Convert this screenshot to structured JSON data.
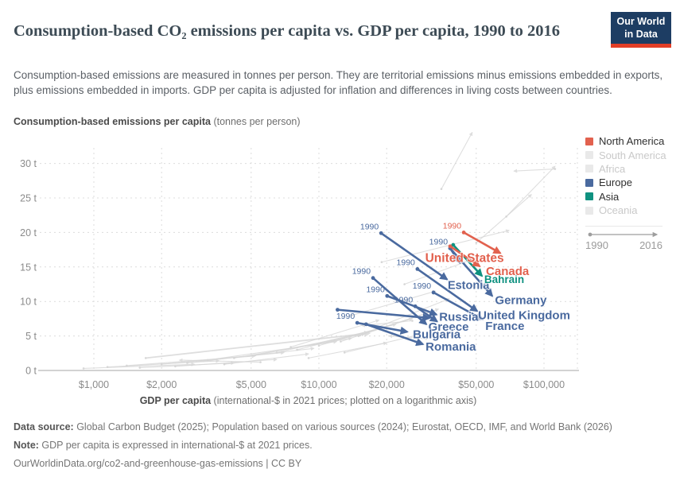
{
  "header": {
    "logo": {
      "line1": "Our World",
      "line2": "in Data"
    }
  },
  "palette": {
    "north_america": "#e2614e",
    "europe": "#4a6a9f",
    "asia": "#0f9180",
    "inactive_swatch": "#e9e9e9",
    "inactive_text": "#c9c9c9",
    "active_text": "#2f2f2f",
    "background_arrow": "#d6d6d6",
    "timeline": "#9e9e9e",
    "gridline": "#dcdcdc",
    "axis_line": "#c4c4c4",
    "tick_text": "#8b8b8b"
  },
  "chart_data": {
    "type": "scatter",
    "variant": "connected-scatter-arrows",
    "title": "Consumption-based CO₂ emissions per capita vs. GDP per capita, 1990 to 2016",
    "subtitle": "Consumption-based emissions are measured in tonnes per person. They are territorial emissions minus emissions embedded in exports, plus emissions embedded in imports. GDP per capita is adjusted for inflation and differences in living costs between countries.",
    "years": [
      1990,
      2016
    ],
    "x_axis": {
      "title_bold": "GDP per capita",
      "title_rest": " (international-$ in 2021 prices; plotted on a logarithmic axis)",
      "scale": "log",
      "ticks": [
        1000,
        2000,
        5000,
        10000,
        20000,
        50000,
        100000
      ],
      "tick_labels": [
        "$1,000",
        "$2,000",
        "$5,000",
        "$10,000",
        "$20,000",
        "$50,000",
        "$100,000"
      ],
      "range": [
        750,
        140000
      ]
    },
    "y_axis": {
      "title_bold": "Consumption-based emissions per capita",
      "title_rest": " (tonnes per person)",
      "scale": "linear",
      "ticks": [
        0,
        5,
        10,
        15,
        20,
        25,
        30
      ],
      "tick_labels": [
        "0 t",
        "5 t",
        "10 t",
        "15 t",
        "20 t",
        "25 t",
        "30 t"
      ],
      "range": [
        0,
        32
      ]
    },
    "series": [
      {
        "name": "United States",
        "region": "North America",
        "color": "#e2614e",
        "start": {
          "gdp": 44000,
          "co2": 20.0
        },
        "end": {
          "gdp": 64000,
          "co2": 17.0
        },
        "year_label": true,
        "label_offset": [
          -45,
          6
        ],
        "label_size": 15.5
      },
      {
        "name": "Canada",
        "region": "North America",
        "color": "#e2614e",
        "start": {
          "gdp": 38300,
          "co2": 18.0
        },
        "end": {
          "gdp": 51800,
          "co2": 15.1
        },
        "year_label": false,
        "label_offset": [
          35,
          6
        ],
        "label_size": 15
      },
      {
        "name": "Bahrain",
        "region": "Asia",
        "color": "#0f9180",
        "start": {
          "gdp": 39500,
          "co2": 18.2
        },
        "end": {
          "gdp": 53000,
          "co2": 13.7
        },
        "year_label": false,
        "label_offset": [
          28,
          4
        ],
        "label_size": 13.5
      },
      {
        "name": "Estonia",
        "region": "Europe",
        "color": "#4a6a9f",
        "start": {
          "gdp": 18900,
          "co2": 19.9
        },
        "end": {
          "gdp": 37100,
          "co2": 13.2
        },
        "year_label": true,
        "label_offset": [
          27,
          7
        ],
        "label_size": 14.5
      },
      {
        "name": "Germany",
        "region": "Europe",
        "color": "#4a6a9f",
        "start": {
          "gdp": 38300,
          "co2": 17.7
        },
        "end": {
          "gdp": 58900,
          "co2": 10.8
        },
        "year_label": true,
        "label_offset": [
          36,
          5
        ],
        "label_size": 15
      },
      {
        "name": "United Kingdom",
        "region": "Europe",
        "color": "#4a6a9f",
        "start": {
          "gdp": 27400,
          "co2": 14.7
        },
        "end": {
          "gdp": 50500,
          "co2": 8.6
        },
        "year_label": true,
        "label_offset": [
          59,
          5
        ],
        "label_size": 15
      },
      {
        "name": "Greece",
        "region": "Europe",
        "color": "#4a6a9f",
        "start": {
          "gdp": 17400,
          "co2": 13.4
        },
        "end": {
          "gdp": 30000,
          "co2": 6.7
        },
        "year_label": true,
        "label_offset": [
          28,
          3
        ],
        "label_size": 15
      },
      {
        "name": "France",
        "region": "Europe",
        "color": "#4a6a9f",
        "start": {
          "gdp": 32300,
          "co2": 11.3
        },
        "end": {
          "gdp": 53400,
          "co2": 7.4
        },
        "year_label": true,
        "label_offset": [
          28,
          8
        ],
        "label_size": 15
      },
      {
        "name": "Russia",
        "region": "Europe",
        "color": "#4a6a9f",
        "start": {
          "gdp": 20100,
          "co2": 10.8
        },
        "end": {
          "gdp": 33300,
          "co2": 8.1
        },
        "year_label": true,
        "label_offset": [
          28,
          3
        ],
        "label_size": 15
      },
      {
        "name": "Bulgaria",
        "region": "Europe",
        "color": "#4a6a9f",
        "start": {
          "gdp": 14800,
          "co2": 6.9
        },
        "end": {
          "gdp": 24700,
          "co2": 5.6
        },
        "year_label": true,
        "label_offset": [
          37,
          3
        ],
        "label_size": 15
      },
      {
        "name": "Romania",
        "region": "Europe",
        "color": "#4a6a9f",
        "start": {
          "gdp": 16200,
          "co2": 6.7
        },
        "end": {
          "gdp": 29000,
          "co2": 3.8
        },
        "year_label": false,
        "label_offset": [
          35,
          3
        ],
        "label_size": 15
      }
    ],
    "unlabeled_series": [
      {
        "region": "Europe",
        "color": "#4a6a9f",
        "start": {
          "gdp": 38300,
          "co2": 17.7
        },
        "end": {
          "gdp": 42300,
          "co2": 15.6
        },
        "year_label": false
      },
      {
        "region": "Europe",
        "color": "#4a6a9f",
        "start": {
          "gdp": 12100,
          "co2": 8.8
        },
        "end": {
          "gdp": 31000,
          "co2": 7.6
        },
        "year_label": false
      },
      {
        "region": "Europe",
        "color": "#4a6a9f",
        "start": {
          "gdp": 26800,
          "co2": 9.3
        },
        "end": {
          "gdp": 33500,
          "co2": 7.1
        },
        "year_label": true
      }
    ],
    "background_series": [
      [
        900,
        0.3,
        2800,
        0.9
      ],
      [
        1150,
        0.5,
        3600,
        1.4
      ],
      [
        1400,
        0.7,
        5200,
        2.1
      ],
      [
        1700,
        1.8,
        16800,
        5.4,
        1.8
      ],
      [
        2000,
        0.9,
        7000,
        2.6
      ],
      [
        2600,
        1.1,
        9500,
        3.2
      ],
      [
        3200,
        1.5,
        12000,
        4.2
      ],
      [
        4200,
        1.8,
        14000,
        4.7
      ],
      [
        5200,
        2.2,
        16000,
        5.3
      ],
      [
        6500,
        2.6,
        19000,
        6.1
      ],
      [
        8000,
        3.0,
        22000,
        6.7
      ],
      [
        10000,
        3.6,
        26000,
        7.5
      ],
      [
        12500,
        4.2,
        30000,
        8.3
      ],
      [
        2300,
        0.6,
        6500,
        1.6
      ],
      [
        1600,
        0.4,
        4200,
        1.1
      ],
      [
        3800,
        0.9,
        9000,
        2.4
      ],
      [
        15000,
        5.0,
        34000,
        8.9
      ],
      [
        18000,
        6.2,
        38000,
        10.4
      ],
      [
        9000,
        1.8,
        20000,
        4.0
      ],
      [
        30000,
        4.6,
        20500,
        5.0
      ],
      [
        26000,
        7.2,
        15500,
        6.5
      ],
      [
        24000,
        12.5,
        52000,
        16.5
      ],
      [
        19000,
        15.7,
        70000,
        20.3
      ],
      [
        14000,
        8.0,
        33000,
        11.5
      ],
      [
        35000,
        26.3,
        48000,
        34.5
      ],
      [
        68000,
        22.3,
        112000,
        29.6
      ],
      [
        112000,
        29.2,
        73500,
        28.9
      ],
      [
        50000,
        18.5,
        88000,
        25.5
      ],
      [
        5500,
        1.2,
        2400,
        1.5
      ],
      [
        7500,
        3.4,
        18500,
        7.3
      ],
      [
        13000,
        2.6,
        28000,
        5.2
      ]
    ]
  },
  "legend": {
    "items": [
      {
        "label": "North America",
        "active": true,
        "color": "#e2614e"
      },
      {
        "label": "South America",
        "active": false,
        "color": "#e9e9e9"
      },
      {
        "label": "Africa",
        "active": false,
        "color": "#e9e9e9"
      },
      {
        "label": "Europe",
        "active": true,
        "color": "#4a6a9f"
      },
      {
        "label": "Asia",
        "active": true,
        "color": "#0f9180"
      },
      {
        "label": "Oceania",
        "active": false,
        "color": "#e9e9e9"
      }
    ],
    "timeline": {
      "start": "1990",
      "end": "2016"
    }
  },
  "footer": {
    "source_label": "Data source:",
    "source_text": " Global Carbon Budget (2025); Population based on various sources (2024); Eurostat, OECD, IMF, and World Bank (2026)",
    "note_label": "Note:",
    "note_text": " GDP per capita is expressed in international-$ at 2021 prices.",
    "url": "OurWorldinData.org/co2-and-greenhouse-gas-emissions | CC BY"
  }
}
